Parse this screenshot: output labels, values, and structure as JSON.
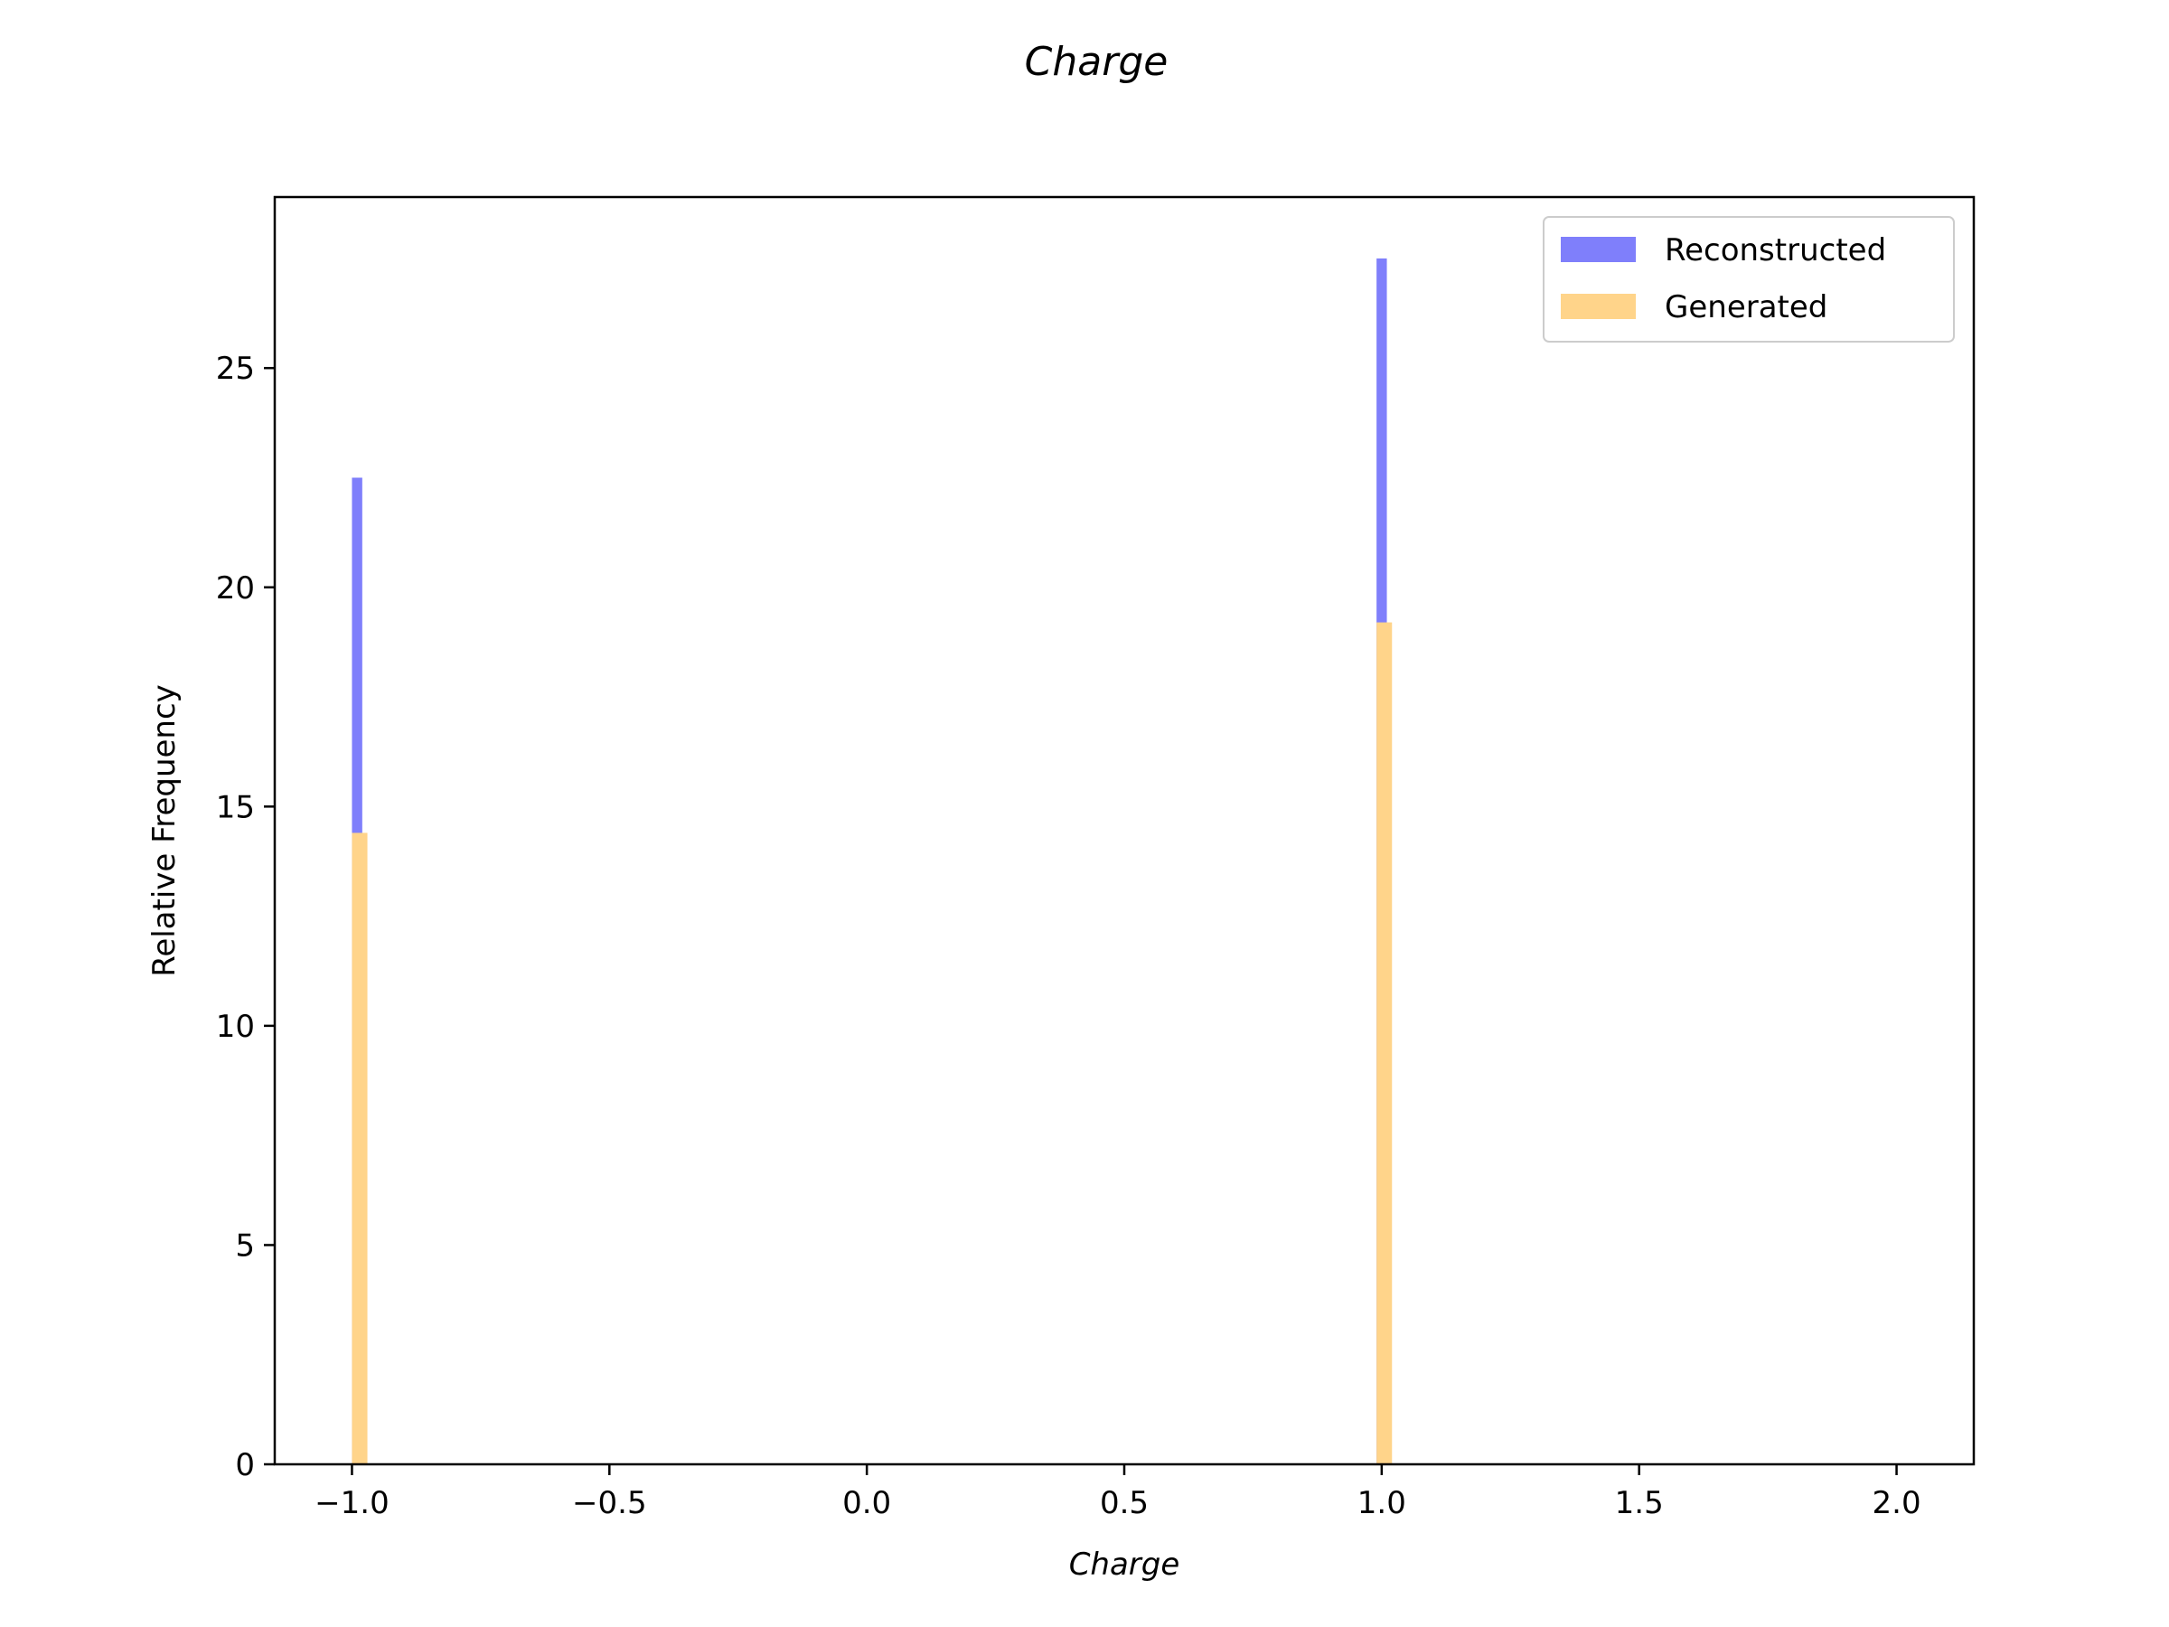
{
  "chart_data": {
    "type": "bar",
    "title": "Charge",
    "xlabel": "Charge",
    "ylabel": "Relative Frequency",
    "xlim": [
      -1.15,
      2.15
    ],
    "ylim": [
      0,
      28.9
    ],
    "xticks": [
      -1.0,
      -0.5,
      0.0,
      0.5,
      1.0,
      1.5,
      2.0
    ],
    "xtick_labels": [
      "−1.0",
      "−0.5",
      "0.0",
      "0.5",
      "1.0",
      "1.5",
      "2.0"
    ],
    "yticks": [
      0,
      5,
      10,
      15,
      20,
      25
    ],
    "ytick_labels": [
      "0",
      "5",
      "10",
      "15",
      "20",
      "25"
    ],
    "grid": false,
    "legend_position": "top-right",
    "series": [
      {
        "name": "Reconstructed",
        "color": "#7f7ffb",
        "bars": [
          {
            "x0": -1.0,
            "x1": -0.98,
            "value": 22.5
          },
          {
            "x0": 0.99,
            "x1": 1.01,
            "value": 27.5
          }
        ]
      },
      {
        "name": "Generated",
        "color": "#ffd48a",
        "bars": [
          {
            "x0": -1.0,
            "x1": -0.97,
            "value": 14.4
          },
          {
            "x0": 0.99,
            "x1": 1.02,
            "value": 19.2
          }
        ]
      }
    ]
  }
}
